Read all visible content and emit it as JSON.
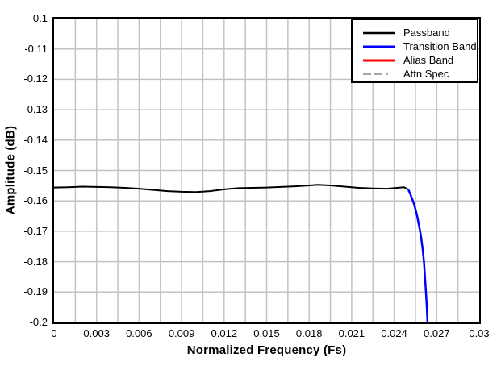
{
  "figure": {
    "background": "#ffffff",
    "axes_border_color": "#000000",
    "grid_color": "#c3c3c3"
  },
  "chart_data": {
    "type": "line",
    "title": "",
    "xlabel": "Normalized Frequency (Fs)",
    "ylabel": "Amplitude (dB)",
    "xlim": [
      0,
      0.03
    ],
    "ylim": [
      -0.2,
      -0.1
    ],
    "grid": "on",
    "x_minor_step": 0.0015,
    "x_tick_values": [
      0,
      0.003,
      0.006,
      0.009,
      0.012,
      0.015,
      0.018,
      0.021,
      0.024,
      0.027,
      0.03
    ],
    "x_tick_labels": [
      "0",
      "0.003",
      "0.006",
      "0.009",
      "0.012",
      "0.015",
      "0.018",
      "0.021",
      "0.024",
      "0.027",
      "0.03"
    ],
    "y_tick_values": [
      -0.1,
      -0.11,
      -0.12,
      -0.13,
      -0.14,
      -0.15,
      -0.16,
      -0.17,
      -0.18,
      -0.19,
      -0.2
    ],
    "y_tick_labels": [
      "-0.1",
      "-0.11",
      "-0.12",
      "-0.13",
      "-0.14",
      "-0.15",
      "-0.16",
      "-0.17",
      "-0.18",
      "-0.19",
      "-0.2"
    ],
    "legend_position": "top-right",
    "series": [
      {
        "name": "Passband",
        "color": "#000000",
        "style": "solid",
        "line_width": 2,
        "x": [
          0.0,
          0.001,
          0.002,
          0.003,
          0.004,
          0.005,
          0.006,
          0.007,
          0.008,
          0.009,
          0.01,
          0.011,
          0.012,
          0.013,
          0.014,
          0.015,
          0.016,
          0.017,
          0.018,
          0.0186,
          0.0195,
          0.0205,
          0.0215,
          0.0225,
          0.0235,
          0.0242,
          0.0247,
          0.025
        ],
        "y": [
          -0.1556,
          -0.1555,
          -0.1553,
          -0.1554,
          -0.1555,
          -0.1557,
          -0.156,
          -0.1564,
          -0.1568,
          -0.157,
          -0.1571,
          -0.1568,
          -0.1562,
          -0.1558,
          -0.1557,
          -0.1556,
          -0.1554,
          -0.1552,
          -0.1549,
          -0.1547,
          -0.1549,
          -0.1553,
          -0.1557,
          -0.1559,
          -0.156,
          -0.1557,
          -0.1555,
          -0.1563
        ]
      },
      {
        "name": "Transition Band",
        "color": "#0000ff",
        "style": "solid",
        "line_width": 2.5,
        "x": [
          0.025,
          0.0252,
          0.0254,
          0.0256,
          0.0258,
          0.0259,
          0.026,
          0.0261,
          0.0262,
          0.0263,
          0.02635
        ],
        "y": [
          -0.1563,
          -0.1585,
          -0.161,
          -0.1645,
          -0.1692,
          -0.172,
          -0.1755,
          -0.18,
          -0.1868,
          -0.1945,
          -0.2
        ]
      },
      {
        "name": "Alias Band",
        "color": "#ff0000",
        "style": "solid",
        "line_width": 2.5,
        "x": [],
        "y": []
      },
      {
        "name": "Attn Spec",
        "color": "#a6a6a6",
        "style": "dash-dot",
        "line_width": 2,
        "x": [],
        "y": []
      }
    ]
  }
}
